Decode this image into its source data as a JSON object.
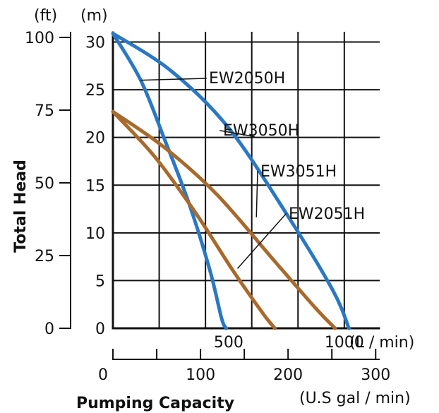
{
  "chart_data": {
    "type": "line",
    "ylabel": "Total Head",
    "xlabel": "Pumping Capacity",
    "units": {
      "feet": "(ft)",
      "meters": "(m)",
      "lpm": "(L / min)",
      "gpm": "(U.S gal / min)"
    },
    "x_lpm_ticks": [
      "500",
      "1000"
    ],
    "x_gpm_ticks": [
      "0",
      "100",
      "200",
      "300"
    ],
    "y_m_ticks": [
      "0",
      "5",
      "10",
      "15",
      "20",
      "25",
      "30"
    ],
    "y_ft_ticks": [
      "0",
      "25",
      "50",
      "75",
      "100"
    ],
    "xlim_lpm": [
      0,
      1150
    ],
    "ylim_m": [
      0,
      31
    ],
    "grid": true,
    "colors": {
      "blue": "#2b78c2",
      "brown": "#a86a2c",
      "axis": "#111111"
    },
    "series": [
      {
        "name": "EW2050H",
        "color_key": "blue",
        "label_anchor": {
          "x": 110,
          "y": 26
        },
        "points": [
          {
            "x": 0,
            "y": 30.9
          },
          {
            "x": 120,
            "y": 26.0
          },
          {
            "x": 220,
            "y": 20.0
          },
          {
            "x": 330,
            "y": 13.0
          },
          {
            "x": 420,
            "y": 6.0
          },
          {
            "x": 470,
            "y": 1.0
          },
          {
            "x": 490,
            "y": 0.0
          }
        ]
      },
      {
        "name": "EW3050H",
        "color_key": "blue",
        "label_anchor": {
          "x": 610,
          "y": 20.1
        },
        "points": [
          {
            "x": 0,
            "y": 30.9
          },
          {
            "x": 250,
            "y": 27.0
          },
          {
            "x": 500,
            "y": 21.0
          },
          {
            "x": 750,
            "y": 12.0
          },
          {
            "x": 950,
            "y": 4.0
          },
          {
            "x": 1020,
            "y": 0.0
          }
        ]
      },
      {
        "name": "EW3051H",
        "color_key": "brown",
        "label_anchor": {
          "x": 620,
          "y": 11.7
        },
        "points": [
          {
            "x": 0,
            "y": 22.7
          },
          {
            "x": 220,
            "y": 19.0
          },
          {
            "x": 450,
            "y": 14.0
          },
          {
            "x": 700,
            "y": 7.0
          },
          {
            "x": 880,
            "y": 2.0
          },
          {
            "x": 960,
            "y": 0.0
          }
        ]
      },
      {
        "name": "EW2051H",
        "color_key": "brown",
        "label_anchor": {
          "x": 540,
          "y": 6.3
        },
        "points": [
          {
            "x": 0,
            "y": 22.7
          },
          {
            "x": 180,
            "y": 18.0
          },
          {
            "x": 360,
            "y": 12.0
          },
          {
            "x": 520,
            "y": 6.0
          },
          {
            "x": 650,
            "y": 1.5
          },
          {
            "x": 700,
            "y": 0.0
          }
        ]
      }
    ]
  }
}
